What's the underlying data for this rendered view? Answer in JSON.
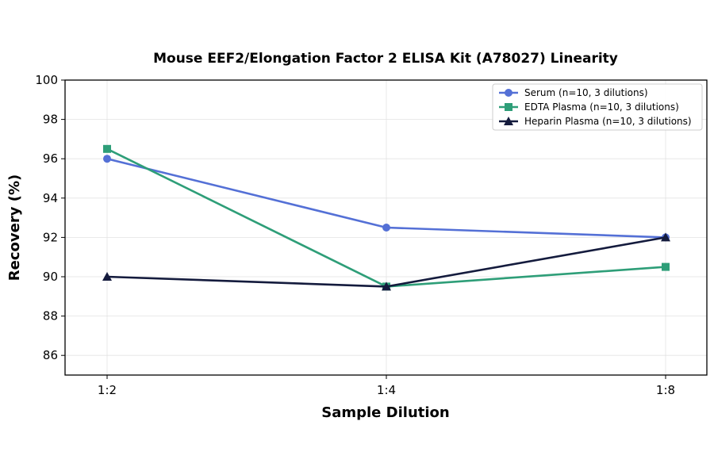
{
  "chart_data": {
    "type": "line",
    "title": "Mouse EEF2/Elongation Factor 2 ELISA Kit (A78027) Linearity",
    "xlabel": "Sample Dilution",
    "ylabel": "Recovery (%)",
    "categories": [
      "1:2",
      "1:4",
      "1:8"
    ],
    "ylim": [
      85,
      100
    ],
    "yticks": [
      "86",
      "88",
      "90",
      "92",
      "94",
      "96",
      "98",
      "100"
    ],
    "grid": true,
    "legend_position": "top-right",
    "series": [
      {
        "name": "Serum (n=10, 3 dilutions)",
        "values": [
          96.0,
          92.5,
          92.0
        ],
        "color": "#5470d6",
        "marker": "circle"
      },
      {
        "name": "EDTA Plasma (n=10, 3 dilutions)",
        "values": [
          96.5,
          89.5,
          90.5
        ],
        "color": "#2e9e78",
        "marker": "square"
      },
      {
        "name": "Heparin Plasma (n=10, 3 dilutions)",
        "values": [
          90.0,
          89.5,
          92.0
        ],
        "color": "#141b3d",
        "marker": "triangle"
      }
    ]
  }
}
